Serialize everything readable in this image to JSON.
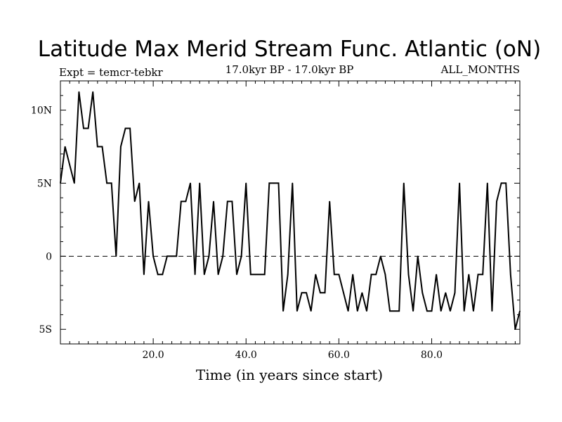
{
  "chart_data": {
    "type": "line",
    "title": "Latitude Max Merid Stream Func. Atlantic (oN)",
    "left_label": "Expt = temcr-tebkr",
    "center_label": "17.0kyr BP - 17.0kyr BP",
    "right_label": "ALL_MONTHS",
    "xlabel": "Time (in years since start)",
    "ylabel": "",
    "xlim": [
      0,
      99
    ],
    "ylim": [
      -6,
      12
    ],
    "x_ticks": [
      {
        "value": 20,
        "label": "20.0"
      },
      {
        "value": 40,
        "label": "40.0"
      },
      {
        "value": 60,
        "label": "60.0"
      },
      {
        "value": 80,
        "label": "80.0"
      }
    ],
    "y_ticks": [
      {
        "value": 10,
        "label": "10N"
      },
      {
        "value": 5,
        "label": "5N"
      },
      {
        "value": 0,
        "label": "0"
      },
      {
        "value": -5,
        "label": "5S"
      }
    ],
    "zero_line": "dashed",
    "x": [
      0,
      1,
      2,
      3,
      4,
      5,
      6,
      7,
      8,
      9,
      10,
      11,
      12,
      13,
      14,
      15,
      16,
      17,
      18,
      19,
      20,
      21,
      22,
      23,
      24,
      25,
      26,
      27,
      28,
      29,
      30,
      31,
      32,
      33,
      34,
      35,
      36,
      37,
      38,
      39,
      40,
      41,
      42,
      43,
      44,
      45,
      46,
      47,
      48,
      49,
      50,
      51,
      52,
      53,
      54,
      55,
      56,
      57,
      58,
      59,
      60,
      61,
      62,
      63,
      64,
      65,
      66,
      67,
      68,
      69,
      70,
      71,
      72,
      73,
      74,
      75,
      76,
      77,
      78,
      79,
      80,
      81,
      82,
      83,
      84,
      85,
      86,
      87,
      88,
      89,
      90,
      91,
      92,
      93,
      94,
      95,
      96,
      97,
      98,
      99
    ],
    "values": [
      5.0,
      7.5,
      6.25,
      5.0,
      11.25,
      8.75,
      8.75,
      11.25,
      7.5,
      7.5,
      5.0,
      5.0,
      0.0,
      7.5,
      8.75,
      8.75,
      3.75,
      5.0,
      -1.25,
      3.75,
      0.0,
      -1.25,
      -1.25,
      0.0,
      0.0,
      0.0,
      3.75,
      3.75,
      5.0,
      -1.25,
      5.0,
      -1.25,
      0.0,
      3.75,
      -1.25,
      0.0,
      3.75,
      3.75,
      -1.25,
      0.0,
      5.0,
      -1.25,
      -1.25,
      -1.25,
      -1.25,
      5.0,
      5.0,
      5.0,
      -3.75,
      -1.25,
      5.0,
      -3.75,
      -2.5,
      -2.5,
      -3.75,
      -1.25,
      -2.5,
      -2.5,
      3.75,
      -1.25,
      -1.25,
      -2.5,
      -3.75,
      -1.25,
      -3.75,
      -2.5,
      -3.75,
      -1.25,
      -1.25,
      0.0,
      -1.25,
      -3.75,
      -3.75,
      -3.75,
      5.0,
      -1.25,
      -3.75,
      0.0,
      -2.5,
      -3.75,
      -3.75,
      -1.25,
      -3.75,
      -2.5,
      -3.75,
      -2.5,
      5.0,
      -3.75,
      -1.25,
      -3.75,
      -1.25,
      -1.25,
      5.0,
      -3.75,
      3.75,
      5.0,
      5.0,
      -1.25,
      -5.0,
      -3.75
    ]
  }
}
